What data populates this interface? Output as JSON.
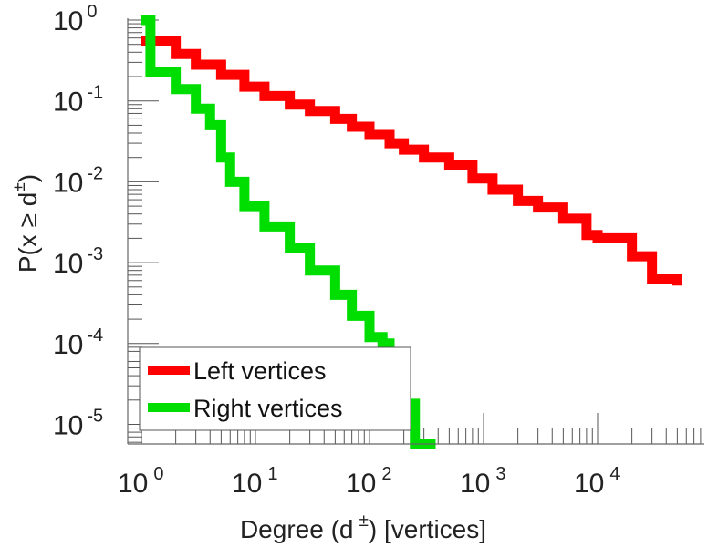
{
  "chart_data": {
    "type": "line",
    "xscale": "log",
    "yscale": "log",
    "xlim": [
      1,
      60000
    ],
    "ylim": [
      5e-06,
      1
    ],
    "xticks": [
      {
        "base": "10",
        "exp": "0",
        "value": 1
      },
      {
        "base": "10",
        "exp": "1",
        "value": 10
      },
      {
        "base": "10",
        "exp": "2",
        "value": 100
      },
      {
        "base": "10",
        "exp": "3",
        "value": 1000
      },
      {
        "base": "10",
        "exp": "4",
        "value": 10000
      }
    ],
    "yticks": [
      {
        "base": "10",
        "exp": "0",
        "value": 1
      },
      {
        "base": "10",
        "exp": "-1",
        "value": 0.1
      },
      {
        "base": "10",
        "exp": "-2",
        "value": 0.01
      },
      {
        "base": "10",
        "exp": "-3",
        "value": 0.001
      },
      {
        "base": "10",
        "exp": "-4",
        "value": 0.0001
      },
      {
        "base": "10",
        "exp": "-5",
        "value": 1e-05
      }
    ],
    "xlabel": {
      "pre": "Degree (d",
      "sup": "±",
      "post": ") [vertices]"
    },
    "ylabel": {
      "pre": "P(x ≥ d",
      "sup": "±",
      "post": ")"
    },
    "legend": {
      "position": "bottom-left"
    },
    "series": [
      {
        "name": "Left vertices",
        "color": "#ff0000",
        "points": [
          [
            1,
            0.55
          ],
          [
            2,
            0.38
          ],
          [
            3,
            0.28
          ],
          [
            5,
            0.21
          ],
          [
            8,
            0.15
          ],
          [
            12,
            0.115
          ],
          [
            20,
            0.09
          ],
          [
            30,
            0.075
          ],
          [
            50,
            0.06
          ],
          [
            70,
            0.048
          ],
          [
            100,
            0.038
          ],
          [
            150,
            0.03
          ],
          [
            200,
            0.025
          ],
          [
            300,
            0.02
          ],
          [
            500,
            0.016
          ],
          [
            800,
            0.011
          ],
          [
            1200,
            0.008
          ],
          [
            2000,
            0.0058
          ],
          [
            3000,
            0.0048
          ],
          [
            5000,
            0.0035
          ],
          [
            8000,
            0.0022
          ],
          [
            10000,
            0.002
          ],
          [
            15000,
            0.002
          ],
          [
            20000,
            0.0012
          ],
          [
            30000,
            0.0012
          ],
          [
            30000,
            0.00062
          ],
          [
            50000,
            0.00062
          ],
          [
            50000,
            0.00052
          ]
        ]
      },
      {
        "name": "Right vertices",
        "color": "#00dd00",
        "points": [
          [
            1,
            1
          ],
          [
            1.2,
            0.23
          ],
          [
            2,
            0.23
          ],
          [
            2,
            0.14
          ],
          [
            3,
            0.08
          ],
          [
            4,
            0.05
          ],
          [
            5,
            0.02
          ],
          [
            6,
            0.01
          ],
          [
            8,
            0.005
          ],
          [
            12,
            0.0028
          ],
          [
            20,
            0.0015
          ],
          [
            30,
            0.0008
          ],
          [
            50,
            0.0004
          ],
          [
            70,
            0.00022
          ],
          [
            100,
            0.00012
          ],
          [
            130,
            0.0001
          ],
          [
            150,
            2.5e-05
          ],
          [
            200,
            1.8e-05
          ],
          [
            250,
            6.5e-06
          ],
          [
            250,
            5.5e-06
          ],
          [
            380,
            5.5e-06
          ]
        ]
      }
    ]
  }
}
